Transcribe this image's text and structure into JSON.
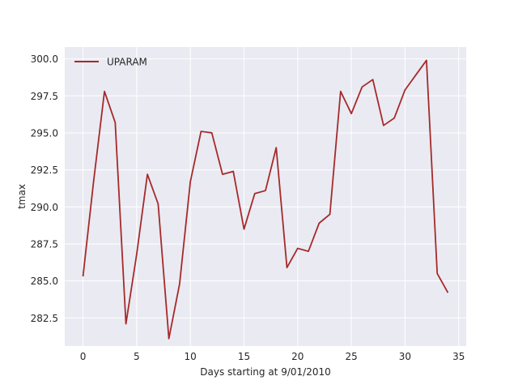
{
  "chart_data": {
    "type": "line",
    "title": "",
    "xlabel": "Days starting at 9/01/2010",
    "ylabel": "tmax",
    "xlim": [
      -1.7,
      35.7
    ],
    "ylim": [
      280.6,
      300.8
    ],
    "xticks": [
      0,
      5,
      10,
      15,
      20,
      25,
      30,
      35
    ],
    "yticks": [
      282.5,
      285.0,
      287.5,
      290.0,
      292.5,
      295.0,
      297.5,
      300.0
    ],
    "ytick_labels": [
      "282.5",
      "285.0",
      "287.5",
      "290.0",
      "292.5",
      "295.0",
      "297.5",
      "300.0"
    ],
    "grid": true,
    "legend_position": "upper-left",
    "series": [
      {
        "name": "UPARAM",
        "color": "#a52a2a",
        "x": [
          0,
          1,
          2,
          3,
          4,
          5,
          6,
          7,
          8,
          9,
          10,
          11,
          12,
          13,
          14,
          15,
          16,
          17,
          18,
          19,
          20,
          21,
          22,
          23,
          24,
          25,
          26,
          27,
          28,
          29,
          30,
          31,
          32,
          33,
          34
        ],
        "y": [
          285.3,
          291.8,
          297.8,
          295.7,
          282.1,
          286.8,
          292.2,
          290.2,
          281.1,
          284.8,
          291.7,
          295.1,
          295.0,
          292.2,
          292.4,
          288.5,
          290.9,
          291.1,
          294.0,
          285.9,
          287.2,
          287.0,
          288.9,
          289.5,
          297.8,
          296.3,
          298.1,
          298.6,
          295.5,
          296.0,
          297.9,
          298.9,
          299.9,
          285.5,
          284.2
        ]
      }
    ]
  }
}
